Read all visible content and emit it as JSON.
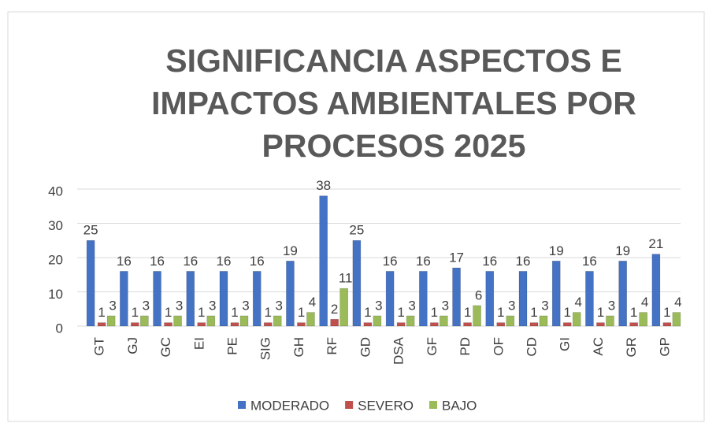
{
  "chart_data": {
    "type": "bar",
    "title": "SIGNIFICANCIA ASPECTOS E IMPACTOS AMBIENTALES POR PROCESOS 2025",
    "categories": [
      "GT",
      "GJ",
      "GC",
      "EI",
      "PE",
      "SIG",
      "GH",
      "RF",
      "GD",
      "DSA",
      "GF",
      "PD",
      "OF",
      "CD",
      "GI",
      "AC",
      "GR",
      "GP"
    ],
    "series": [
      {
        "name": "MODERADO",
        "color": "#4472c4",
        "values": [
          25,
          16,
          16,
          16,
          16,
          16,
          19,
          38,
          25,
          16,
          16,
          17,
          16,
          16,
          19,
          16,
          19,
          21
        ]
      },
      {
        "name": "SEVERO",
        "color": "#c0504d",
        "values": [
          1,
          1,
          1,
          1,
          1,
          1,
          1,
          2,
          1,
          1,
          1,
          1,
          1,
          1,
          1,
          1,
          1,
          1
        ]
      },
      {
        "name": "BAJO",
        "color": "#9bbb59",
        "values": [
          3,
          3,
          3,
          3,
          3,
          3,
          4,
          11,
          3,
          3,
          3,
          6,
          3,
          3,
          4,
          3,
          4,
          4
        ]
      }
    ],
    "ylim": [
      0,
      40
    ],
    "yticks": [
      0,
      10,
      20,
      30,
      40
    ],
    "grid": true,
    "legend": "bottom"
  }
}
